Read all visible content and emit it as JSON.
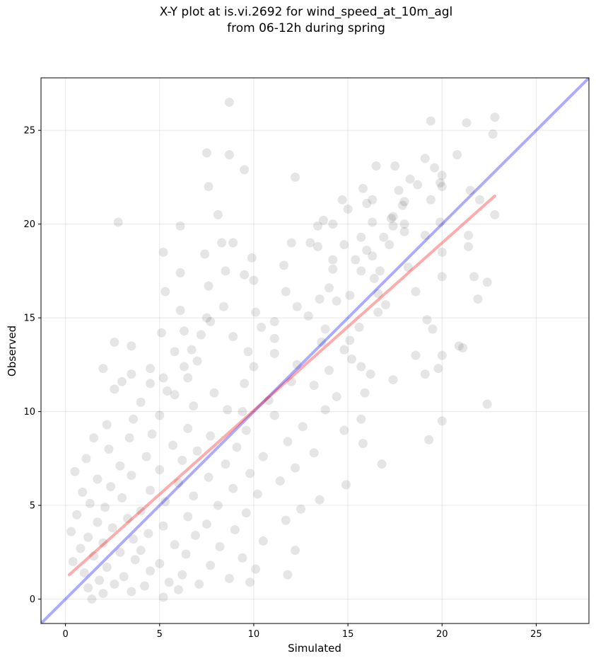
{
  "chart_data": {
    "type": "scatter",
    "title": "X-Y plot at is.vi.2692 for wind_speed_at_10m_agl",
    "subtitle": "from 06-12h during spring",
    "xlabel": "Simulated",
    "ylabel": "Observed",
    "xlim": [
      -1.3,
      27.8
    ],
    "ylim": [
      -1.3,
      27.8
    ],
    "xticks": [
      0,
      5,
      10,
      15,
      20,
      25
    ],
    "yticks": [
      0,
      5,
      10,
      15,
      20,
      25
    ],
    "grid": true,
    "point_color": "#000000",
    "point_alpha": 0.1,
    "lines": [
      {
        "role": "one-to-one",
        "color": "#0000ff",
        "alpha": 0.33,
        "x": [
          -1.3,
          27.8
        ],
        "y": [
          -1.3,
          27.8
        ]
      },
      {
        "role": "regression",
        "color": "#ff0000",
        "alpha": 0.33,
        "x": [
          0.2,
          22.8
        ],
        "y": [
          1.3,
          21.5
        ]
      }
    ],
    "points": [
      [
        8.7,
        26.5
      ],
      [
        22.8,
        25.7
      ],
      [
        19.4,
        25.5
      ],
      [
        21.3,
        25.4
      ],
      [
        22.7,
        24.8
      ],
      [
        19.1,
        23.5
      ],
      [
        20.8,
        23.7
      ],
      [
        17.5,
        23.1
      ],
      [
        16.5,
        23.1
      ],
      [
        7.5,
        23.8
      ],
      [
        8.7,
        23.7
      ],
      [
        9.5,
        22.9
      ],
      [
        19.6,
        23.0
      ],
      [
        20.0,
        22.6
      ],
      [
        19.9,
        22.2
      ],
      [
        12.2,
        22.5
      ],
      [
        18.3,
        22.4
      ],
      [
        18.7,
        22.1
      ],
      [
        7.6,
        22.0
      ],
      [
        20.0,
        22.0
      ],
      [
        17.7,
        21.8
      ],
      [
        15.8,
        21.9
      ],
      [
        21.5,
        21.8
      ],
      [
        16.3,
        21.3
      ],
      [
        18.0,
        21.2
      ],
      [
        14.7,
        21.3
      ],
      [
        22.0,
        21.3
      ],
      [
        19.4,
        21.3
      ],
      [
        16.0,
        21.1
      ],
      [
        17.9,
        21.0
      ],
      [
        22.8,
        20.5
      ],
      [
        15.0,
        20.8
      ],
      [
        17.3,
        20.3
      ],
      [
        2.8,
        20.1
      ],
      [
        8.1,
        20.5
      ],
      [
        17.4,
        20.4
      ],
      [
        16.3,
        20.1
      ],
      [
        13.7,
        20.2
      ],
      [
        19.9,
        20.1
      ],
      [
        14.2,
        20.0
      ],
      [
        18.0,
        20.0
      ],
      [
        17.4,
        19.9
      ],
      [
        6.1,
        19.9
      ],
      [
        13.4,
        19.9
      ],
      [
        21.4,
        19.4
      ],
      [
        15.7,
        19.3
      ],
      [
        19.1,
        19.4
      ],
      [
        16.9,
        19.3
      ],
      [
        18.0,
        19.6
      ],
      [
        12.0,
        19.0
      ],
      [
        13.0,
        19.0
      ],
      [
        8.3,
        19.0
      ],
      [
        8.9,
        19.0
      ],
      [
        13.4,
        18.8
      ],
      [
        14.8,
        18.9
      ],
      [
        17.2,
        18.9
      ],
      [
        16.0,
        18.6
      ],
      [
        21.4,
        18.8
      ],
      [
        20.0,
        18.5
      ],
      [
        7.4,
        18.4
      ],
      [
        5.2,
        18.5
      ],
      [
        9.9,
        18.2
      ],
      [
        15.4,
        18.1
      ],
      [
        16.3,
        18.3
      ],
      [
        14.2,
        18.1
      ],
      [
        15.7,
        17.5
      ],
      [
        11.6,
        17.8
      ],
      [
        18.2,
        17.7
      ],
      [
        14.2,
        17.6
      ],
      [
        16.7,
        17.5
      ],
      [
        8.5,
        17.5
      ],
      [
        9.5,
        17.3
      ],
      [
        10.0,
        17.0
      ],
      [
        21.7,
        17.2
      ],
      [
        20.0,
        17.2
      ],
      [
        6.1,
        17.4
      ],
      [
        16.4,
        17.1
      ],
      [
        14.0,
        16.6
      ],
      [
        7.6,
        16.7
      ],
      [
        5.3,
        16.4
      ],
      [
        11.7,
        16.4
      ],
      [
        16.6,
        16.3
      ],
      [
        15.1,
        16.2
      ],
      [
        18.6,
        16.4
      ],
      [
        21.9,
        16.0
      ],
      [
        22.4,
        16.9
      ],
      [
        13.5,
        16.0
      ],
      [
        17.0,
        15.7
      ],
      [
        14.4,
        15.9
      ],
      [
        12.3,
        15.6
      ],
      [
        8.4,
        15.6
      ],
      [
        6.1,
        15.4
      ],
      [
        7.5,
        15.0
      ],
      [
        10.1,
        15.3
      ],
      [
        16.6,
        15.3
      ],
      [
        12.9,
        15.1
      ],
      [
        19.2,
        14.9
      ],
      [
        11.1,
        14.8
      ],
      [
        7.7,
        14.8
      ],
      [
        10.4,
        14.5
      ],
      [
        13.8,
        14.4
      ],
      [
        19.5,
        14.4
      ],
      [
        15.6,
        14.5
      ],
      [
        6.3,
        14.3
      ],
      [
        5.1,
        14.2
      ],
      [
        7.2,
        14.1
      ],
      [
        8.9,
        14.0
      ],
      [
        11.1,
        13.9
      ],
      [
        13.6,
        13.7
      ],
      [
        15.1,
        13.8
      ],
      [
        2.6,
        13.7
      ],
      [
        20.9,
        13.5
      ],
      [
        6.7,
        13.3
      ],
      [
        5.8,
        13.2
      ],
      [
        3.5,
        13.5
      ],
      [
        14.8,
        13.3
      ],
      [
        9.7,
        13.2
      ],
      [
        21.1,
        13.4
      ],
      [
        11.1,
        13.1
      ],
      [
        18.6,
        13.0
      ],
      [
        20.0,
        13.0
      ],
      [
        15.2,
        12.8
      ],
      [
        7.0,
        12.7
      ],
      [
        12.3,
        12.5
      ],
      [
        4.5,
        12.3
      ],
      [
        6.3,
        12.4
      ],
      [
        10.0,
        12.4
      ],
      [
        14.0,
        12.2
      ],
      [
        2.0,
        12.3
      ],
      [
        16.2,
        12.0
      ],
      [
        19.1,
        12.0
      ],
      [
        15.7,
        12.4
      ],
      [
        19.8,
        12.3
      ],
      [
        3.5,
        12.0
      ],
      [
        5.2,
        11.8
      ],
      [
        17.4,
        11.7
      ],
      [
        6.5,
        11.8
      ],
      [
        3.0,
        11.6
      ],
      [
        9.5,
        11.5
      ],
      [
        13.2,
        11.4
      ],
      [
        12.0,
        11.6
      ],
      [
        4.5,
        11.5
      ],
      [
        2.6,
        11.2
      ],
      [
        15.9,
        11.0
      ],
      [
        5.4,
        11.1
      ],
      [
        7.9,
        11.0
      ],
      [
        14.4,
        10.8
      ],
      [
        10.8,
        10.6
      ],
      [
        5.8,
        10.9
      ],
      [
        22.4,
        10.4
      ],
      [
        4.0,
        10.5
      ],
      [
        6.8,
        10.3
      ],
      [
        8.6,
        10.1
      ],
      [
        13.8,
        10.1
      ],
      [
        9.4,
        10.0
      ],
      [
        11.1,
        9.8
      ],
      [
        5.0,
        9.8
      ],
      [
        15.7,
        9.6
      ],
      [
        3.6,
        9.6
      ],
      [
        20.0,
        9.5
      ],
      [
        2.2,
        9.3
      ],
      [
        12.6,
        9.2
      ],
      [
        6.5,
        9.1
      ],
      [
        14.8,
        9.0
      ],
      [
        9.6,
        9.0
      ],
      [
        4.6,
        8.8
      ],
      [
        7.7,
        8.7
      ],
      [
        3.4,
        8.6
      ],
      [
        19.3,
        8.5
      ],
      [
        1.5,
        8.6
      ],
      [
        11.8,
        8.4
      ],
      [
        15.8,
        8.3
      ],
      [
        5.7,
        8.2
      ],
      [
        9.1,
        8.1
      ],
      [
        2.3,
        8.0
      ],
      [
        7.0,
        7.9
      ],
      [
        13.2,
        7.8
      ],
      [
        4.3,
        7.6
      ],
      [
        10.5,
        7.6
      ],
      [
        1.1,
        7.5
      ],
      [
        6.2,
        7.4
      ],
      [
        8.5,
        7.2
      ],
      [
        16.8,
        7.2
      ],
      [
        2.9,
        7.1
      ],
      [
        12.2,
        7.0
      ],
      [
        5.0,
        6.9
      ],
      [
        0.5,
        6.8
      ],
      [
        9.8,
        6.7
      ],
      [
        3.5,
        6.6
      ],
      [
        7.6,
        6.5
      ],
      [
        1.7,
        6.4
      ],
      [
        11.4,
        6.3
      ],
      [
        6.0,
        6.2
      ],
      [
        14.9,
        6.1
      ],
      [
        2.4,
        6.0
      ],
      [
        8.9,
        5.9
      ],
      [
        4.5,
        5.8
      ],
      [
        0.9,
        5.7
      ],
      [
        10.2,
        5.6
      ],
      [
        6.8,
        5.5
      ],
      [
        3.0,
        5.4
      ],
      [
        13.5,
        5.3
      ],
      [
        5.3,
        5.2
      ],
      [
        1.3,
        5.1
      ],
      [
        8.1,
        5.0
      ],
      [
        2.1,
        4.9
      ],
      [
        12.5,
        4.8
      ],
      [
        4.0,
        4.7
      ],
      [
        9.6,
        4.6
      ],
      [
        0.6,
        4.5
      ],
      [
        6.5,
        4.4
      ],
      [
        3.3,
        4.3
      ],
      [
        11.7,
        4.2
      ],
      [
        1.7,
        4.1
      ],
      [
        7.5,
        4.0
      ],
      [
        5.2,
        3.9
      ],
      [
        2.5,
        3.8
      ],
      [
        9.0,
        3.7
      ],
      [
        0.3,
        3.6
      ],
      [
        4.4,
        3.5
      ],
      [
        6.9,
        3.4
      ],
      [
        1.2,
        3.3
      ],
      [
        3.6,
        3.2
      ],
      [
        10.5,
        3.1
      ],
      [
        2.0,
        3.0
      ],
      [
        5.8,
        2.9
      ],
      [
        8.2,
        2.8
      ],
      [
        0.8,
        2.7
      ],
      [
        4.0,
        2.6
      ],
      [
        12.2,
        2.6
      ],
      [
        2.9,
        2.5
      ],
      [
        6.4,
        2.4
      ],
      [
        1.5,
        2.3
      ],
      [
        9.4,
        2.2
      ],
      [
        3.7,
        2.1
      ],
      [
        0.4,
        2.0
      ],
      [
        5.0,
        1.9
      ],
      [
        7.7,
        1.8
      ],
      [
        2.2,
        1.7
      ],
      [
        10.1,
        1.6
      ],
      [
        4.5,
        1.5
      ],
      [
        1.0,
        1.4
      ],
      [
        6.2,
        1.3
      ],
      [
        11.8,
        1.3
      ],
      [
        3.1,
        1.2
      ],
      [
        8.7,
        1.1
      ],
      [
        1.8,
        1.0
      ],
      [
        5.5,
        0.9
      ],
      [
        9.8,
        0.9
      ],
      [
        2.6,
        0.8
      ],
      [
        7.1,
        0.8
      ],
      [
        4.2,
        0.7
      ],
      [
        1.2,
        0.6
      ],
      [
        6.0,
        0.5
      ],
      [
        3.5,
        0.4
      ],
      [
        2.0,
        0.3
      ],
      [
        5.2,
        0.1
      ],
      [
        1.4,
        0.0
      ]
    ]
  }
}
